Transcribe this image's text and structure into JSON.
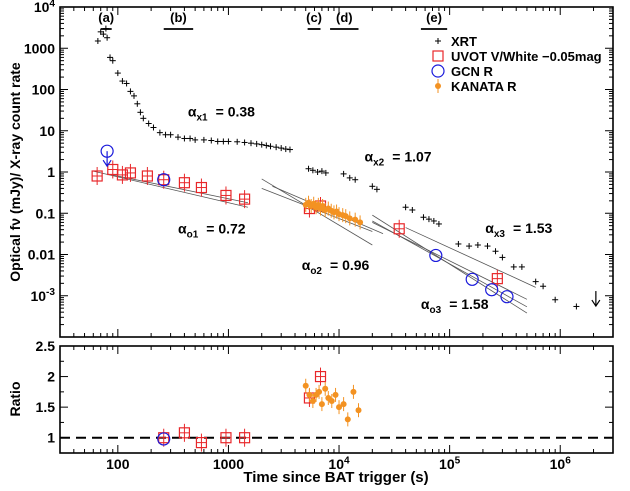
{
  "chart_data": [
    {
      "type": "scatter",
      "panel": "main",
      "x_scale": "log",
      "y_scale": "log",
      "xlim": [
        30,
        3000000
      ],
      "ylim": [
        0.0001,
        10000
      ],
      "ylabel": "Optical fν (mJy)/ X-ray count rate",
      "xlabel": "Time since BAT trigger (s)",
      "x_ticks": [
        {
          "v": 100,
          "label": "100"
        },
        {
          "v": 1000,
          "label": "1000"
        },
        {
          "v": 10000,
          "label": "10",
          "sup": "4"
        },
        {
          "v": 100000,
          "label": "10",
          "sup": "5"
        },
        {
          "v": 1000000,
          "label": "10",
          "sup": "6"
        }
      ],
      "y_ticks": [
        {
          "v": 0.001,
          "label": "10",
          "sup": "-3"
        },
        {
          "v": 0.01,
          "label": "0.01"
        },
        {
          "v": 0.1,
          "label": "0.1"
        },
        {
          "v": 1,
          "label": "1"
        },
        {
          "v": 10,
          "label": "10"
        },
        {
          "v": 100,
          "label": "100"
        },
        {
          "v": 1000,
          "label": "1000"
        },
        {
          "v": 10000,
          "label": "10",
          "sup": "4"
        }
      ],
      "legend_position": "top-right",
      "legend": [
        {
          "label": "XRT",
          "marker": "plus",
          "color": "#000000"
        },
        {
          "label": "UVOT V/White −0.05mag",
          "marker": "square",
          "color": "#e8272a"
        },
        {
          "label": "GCN R",
          "marker": "circle",
          "color": "#1a1adb"
        },
        {
          "label": "KANATA R",
          "marker": "dot",
          "color": "#f39222"
        }
      ],
      "epochs": [
        {
          "label": "(a)",
          "x1": 70,
          "x2": 88
        },
        {
          "label": "(b)",
          "x1": 260,
          "x2": 480
        },
        {
          "label": "(c)",
          "x1": 5200,
          "x2": 6800
        },
        {
          "label": "(d)",
          "x1": 8300,
          "x2": 15000
        },
        {
          "label": "(e)",
          "x1": 55000,
          "x2": 95000
        }
      ],
      "annotations": [
        {
          "sym": "α",
          "sub": "x1",
          "value": "= 0.38",
          "x": 430,
          "y": 22
        },
        {
          "sym": "α",
          "sub": "x2",
          "value": "= 1.07",
          "x": 17000,
          "y": 1.8
        },
        {
          "sym": "α",
          "sub": "x3",
          "value": "= 1.53",
          "x": 210000,
          "y": 0.033
        },
        {
          "sym": "α",
          "sub": "o1",
          "value": "= 0.72",
          "x": 350,
          "y": 0.032
        },
        {
          "sym": "α",
          "sub": "o2",
          "value": "= 0.96",
          "x": 4600,
          "y": 0.0042
        },
        {
          "sym": "α",
          "sub": "o3",
          "value": "= 1.58",
          "x": 55000,
          "y": 0.00048
        }
      ],
      "series": [
        {
          "name": "XRT",
          "points": [
            [
              66,
              1500
            ],
            [
              70,
              2500
            ],
            [
              74,
              2200
            ],
            [
              78,
              3000
            ],
            [
              80,
              1800
            ],
            [
              85,
              600
            ],
            [
              90,
              500
            ],
            [
              100,
              250
            ],
            [
              110,
              160
            ],
            [
              120,
              140
            ],
            [
              130,
              90
            ],
            [
              140,
              70
            ],
            [
              150,
              45
            ],
            [
              160,
              28
            ],
            [
              170,
              20
            ],
            [
              190,
              15
            ],
            [
              210,
              12
            ],
            [
              240,
              9
            ],
            [
              270,
              8
            ],
            [
              300,
              8
            ],
            [
              350,
              7
            ],
            [
              400,
              6.5
            ],
            [
              450,
              6.5
            ],
            [
              500,
              6
            ],
            [
              600,
              6
            ],
            [
              700,
              5.8
            ],
            [
              800,
              5.5
            ],
            [
              900,
              5.5
            ],
            [
              1000,
              5.5
            ],
            [
              1200,
              5.4
            ],
            [
              1400,
              5.2
            ],
            [
              1600,
              5
            ],
            [
              1800,
              4.8
            ],
            [
              2000,
              4.6
            ],
            [
              2200,
              4.4
            ],
            [
              2400,
              4.2
            ],
            [
              2700,
              4
            ],
            [
              3000,
              3.8
            ],
            [
              3300,
              3.6
            ],
            [
              3600,
              3.5
            ],
            [
              5300,
              1.2
            ],
            [
              5800,
              1.1
            ],
            [
              6400,
              1.0
            ],
            [
              7000,
              1.05
            ],
            [
              7600,
              0.95
            ],
            [
              11000,
              0.9
            ],
            [
              12500,
              0.72
            ],
            [
              14000,
              0.65
            ],
            [
              20000,
              0.45
            ],
            [
              22000,
              0.38
            ],
            [
              40000,
              0.14
            ],
            [
              46000,
              0.12
            ],
            [
              58000,
              0.08
            ],
            [
              65000,
              0.072
            ],
            [
              72000,
              0.065
            ],
            [
              80000,
              0.055
            ],
            [
              120000,
              0.018
            ],
            [
              150000,
              0.016
            ],
            [
              180000,
              0.017
            ],
            [
              220000,
              0.016
            ],
            [
              260000,
              0.012
            ],
            [
              300000,
              0.0085
            ],
            [
              380000,
              0.005
            ],
            [
              450000,
              0.005
            ],
            [
              600000,
              0.0022
            ],
            [
              700000,
              0.0017
            ],
            [
              900000,
              0.0008
            ],
            [
              1400000,
              0.00055
            ]
          ]
        },
        {
          "name": "UVOT V/White −0.05mag",
          "points": [
            [
              65,
              0.8
            ],
            [
              90,
              1.15
            ],
            [
              110,
              0.85
            ],
            [
              130,
              0.95
            ],
            [
              185,
              0.8
            ],
            [
              260,
              0.65
            ],
            [
              400,
              0.55
            ],
            [
              570,
              0.42
            ],
            [
              950,
              0.27
            ],
            [
              1400,
              0.22
            ],
            [
              5400,
              0.13
            ],
            [
              6800,
              0.15
            ],
            [
              35000,
              0.042
            ],
            [
              270000,
              0.0026
            ]
          ]
        },
        {
          "name": "GCN R",
          "points": [
            [
              80,
              3.2
            ],
            [
              260,
              0.65
            ],
            [
              75000,
              0.0095
            ],
            [
              160000,
              0.0025
            ],
            [
              240000,
              0.0014
            ],
            [
              330000,
              0.00095
            ]
          ]
        },
        {
          "name": "KANATA R",
          "points": [
            [
              5000,
              0.16
            ],
            [
              5300,
              0.18
            ],
            [
              5600,
              0.15
            ],
            [
              5900,
              0.17
            ],
            [
              6200,
              0.14
            ],
            [
              6500,
              0.16
            ],
            [
              6800,
              0.13
            ],
            [
              7100,
              0.15
            ],
            [
              7500,
              0.12
            ],
            [
              8000,
              0.13
            ],
            [
              8500,
              0.115
            ],
            [
              9000,
              0.105
            ],
            [
              9500,
              0.11
            ],
            [
              10000,
              0.095
            ],
            [
              10800,
              0.09
            ],
            [
              11500,
              0.085
            ],
            [
              12500,
              0.075
            ],
            [
              14000,
              0.07
            ],
            [
              15500,
              0.06
            ]
          ]
        }
      ],
      "upper_limits": [
        {
          "x": 80,
          "y": 3.2,
          "color": "#1a1adb"
        },
        {
          "x": 2100000,
          "y": 0.0013,
          "color": "#000000"
        }
      ],
      "fit_lines": [
        [
          [
            60,
            1.05
          ],
          [
            1500,
            0.14
          ]
        ],
        [
          [
            80,
            0.9
          ],
          [
            1500,
            0.18
          ]
        ],
        [
          [
            2000,
            0.68
          ],
          [
            20000,
            0.017
          ]
        ],
        [
          [
            2000,
            0.4
          ],
          [
            20000,
            0.036
          ]
        ],
        [
          [
            2500,
            0.45
          ],
          [
            25000,
            0.032
          ]
        ],
        [
          [
            20000,
            0.065
          ],
          [
            500000,
            0.00054
          ]
        ],
        [
          [
            20000,
            0.09
          ],
          [
            500000,
            0.00038
          ]
        ],
        [
          [
            20000,
            0.06
          ],
          [
            500000,
            0.00082
          ]
        ],
        [
          [
            40000,
            0.045
          ],
          [
            600000,
            0.0016
          ]
        ]
      ]
    },
    {
      "type": "scatter",
      "panel": "ratio",
      "x_scale": "log",
      "ylabel": "Ratio",
      "ylim": [
        0.75,
        2.5
      ],
      "y_ticks": [
        {
          "v": 1,
          "label": "1"
        },
        {
          "v": 1.5,
          "label": "1.5"
        },
        {
          "v": 2,
          "label": "2"
        },
        {
          "v": 2.5,
          "label": "2.5"
        }
      ],
      "reference_line": 1,
      "series": [
        {
          "name": "UVOT",
          "color": "#e8272a",
          "marker": "square",
          "points": [
            [
              260,
              1.0
            ],
            [
              400,
              1.08
            ],
            [
              570,
              0.92
            ],
            [
              950,
              1.0
            ],
            [
              1400,
              1.0
            ],
            [
              5400,
              1.65
            ],
            [
              6800,
              2.0
            ]
          ]
        },
        {
          "name": "GCN",
          "color": "#1a1adb",
          "marker": "circle",
          "points": [
            [
              260,
              0.98
            ]
          ]
        },
        {
          "name": "KANATA",
          "color": "#f39222",
          "marker": "dot",
          "points": [
            [
              5000,
              1.85
            ],
            [
              5400,
              1.7
            ],
            [
              5800,
              1.6
            ],
            [
              6200,
              1.7
            ],
            [
              6600,
              1.75
            ],
            [
              7000,
              1.55
            ],
            [
              7500,
              1.8
            ],
            [
              8000,
              1.65
            ],
            [
              8600,
              1.6
            ],
            [
              9300,
              1.7
            ],
            [
              10000,
              1.5
            ],
            [
              11000,
              1.55
            ],
            [
              12000,
              1.3
            ],
            [
              13500,
              1.75
            ],
            [
              15000,
              1.45
            ]
          ]
        }
      ]
    }
  ]
}
